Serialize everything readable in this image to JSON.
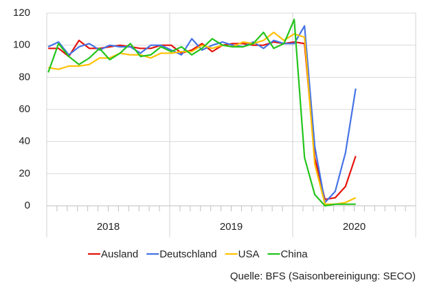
{
  "chart_data": {
    "type": "line",
    "categories": [
      null,
      null,
      null,
      null,
      null,
      null,
      null,
      null,
      null,
      null,
      null,
      null,
      null,
      null,
      null,
      null,
      null,
      null,
      null,
      null,
      null,
      null,
      null,
      null,
      null,
      null,
      null,
      null,
      null,
      null,
      null,
      null,
      null,
      null,
      null,
      null
    ],
    "year_labels": [
      "2018",
      "2019",
      "2020"
    ],
    "series": [
      {
        "name": "Ausland",
        "color": "#e3120b",
        "values": [
          98,
          98,
          93,
          103,
          98,
          98,
          99,
          100,
          99,
          98,
          98,
          100,
          100,
          95,
          97,
          101,
          96,
          100,
          101,
          101,
          100,
          100,
          102,
          101,
          102,
          101,
          30,
          4,
          5,
          12,
          31,
          null,
          null,
          null,
          null,
          null
        ]
      },
      {
        "name": "Deutschland",
        "color": "#4472e6",
        "values": [
          99,
          102,
          94,
          99,
          101,
          97,
          100,
          99,
          99,
          95,
          100,
          100,
          97,
          94,
          104,
          97,
          100,
          102,
          100,
          99,
          102,
          98,
          103,
          101,
          101,
          112,
          37,
          2,
          9,
          33,
          73,
          null,
          null,
          null,
          null,
          null
        ]
      },
      {
        "name": "USA",
        "color": "#ffc000",
        "values": [
          86,
          85,
          87,
          87,
          88,
          92,
          92,
          95,
          94,
          94,
          92,
          95,
          95,
          96,
          96,
          100,
          98,
          100,
          99,
          102,
          101,
          103,
          108,
          103,
          107,
          105,
          26,
          1,
          1,
          2,
          5,
          null,
          null,
          null,
          null,
          null
        ]
      },
      {
        "name": "China",
        "color": "#22c41a",
        "values": [
          83,
          101,
          93,
          88,
          92,
          98,
          91,
          95,
          101,
          93,
          94,
          99,
          96,
          99,
          94,
          98,
          104,
          100,
          99,
          99,
          101,
          108,
          98,
          101,
          116,
          30,
          7,
          0,
          1,
          1,
          1,
          null,
          null,
          null,
          null,
          null
        ]
      }
    ],
    "ylim": [
      0,
      120
    ],
    "yticks": [
      0,
      20,
      40,
      60,
      80,
      100,
      120
    ],
    "grid": true,
    "source": "Quelle: BFS (Saisonbereinigung: SECO)"
  }
}
